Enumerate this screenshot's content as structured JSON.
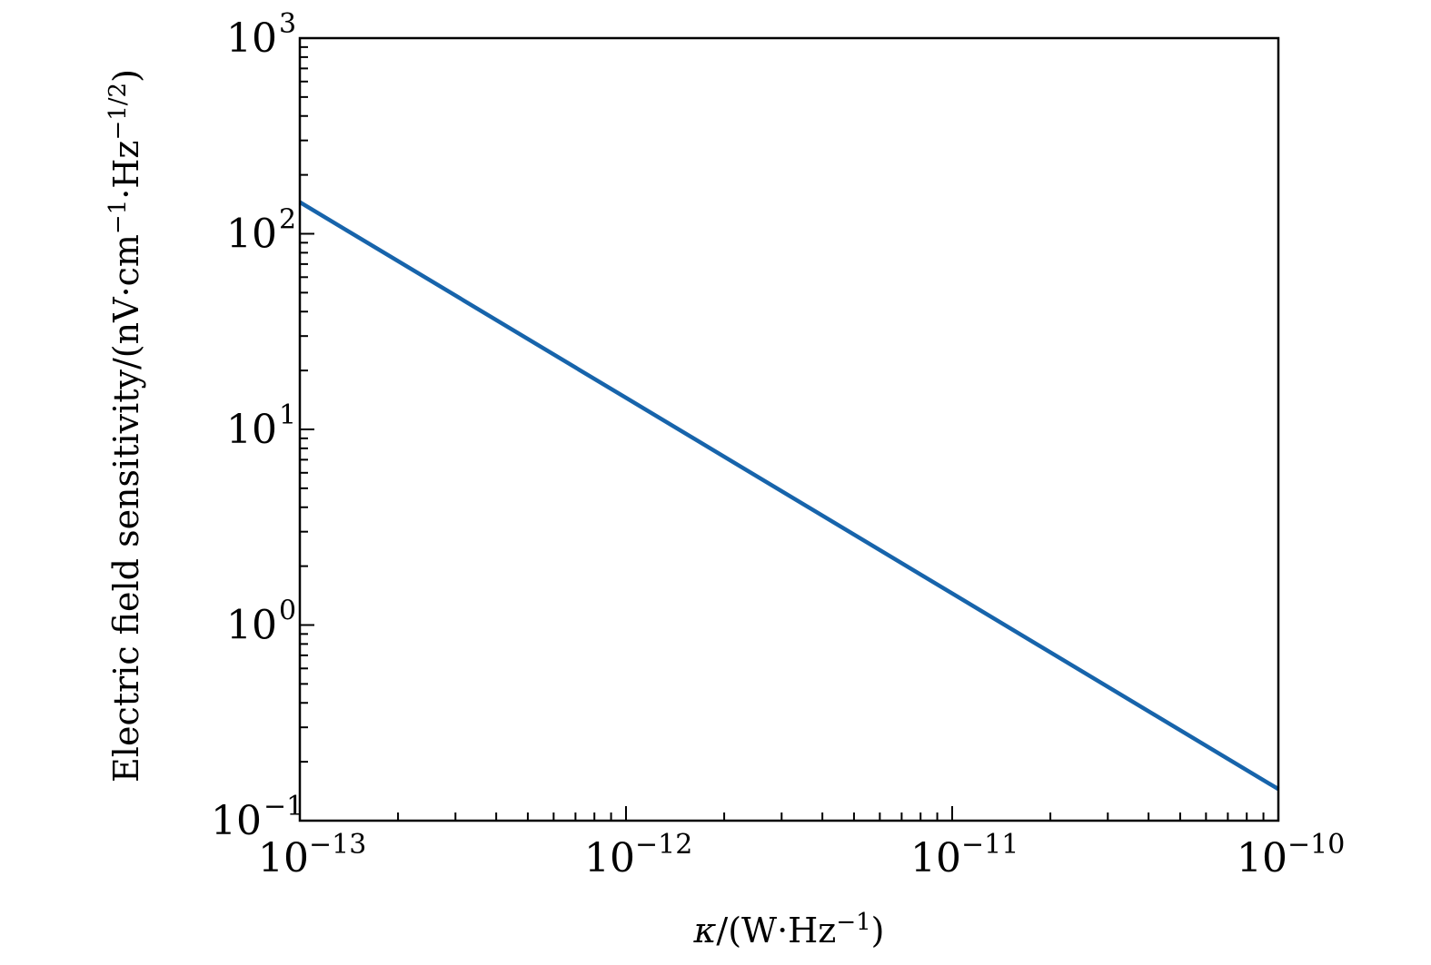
{
  "chart_data": {
    "type": "line",
    "title": "",
    "xlabel": {
      "parts": [
        {
          "text": "κ",
          "italic": true
        },
        {
          "text": "/(W·Hz"
        },
        {
          "text": "−1",
          "sup": true
        },
        {
          "text": ")"
        }
      ]
    },
    "ylabel": {
      "parts": [
        {
          "text": "Electric field sensitivity/(nV·cm"
        },
        {
          "text": "−1",
          "sup": true
        },
        {
          "text": "·Hz"
        },
        {
          "text": "−1/2",
          "sup": true
        },
        {
          "text": ")"
        }
      ]
    },
    "xscale": "log",
    "yscale": "log",
    "xlim": [
      1e-13,
      1e-10
    ],
    "ylim": [
      0.1,
      1000
    ],
    "x_ticks": [
      {
        "value": 1e-13,
        "base": "10",
        "exp": "−13"
      },
      {
        "value": 1e-12,
        "base": "10",
        "exp": "−12"
      },
      {
        "value": 1e-11,
        "base": "10",
        "exp": "−11"
      },
      {
        "value": 1e-10,
        "base": "10",
        "exp": "−10"
      }
    ],
    "y_ticks": [
      {
        "value": 0.1,
        "base": "10",
        "exp": "−1"
      },
      {
        "value": 1,
        "base": "10",
        "exp": "0"
      },
      {
        "value": 10,
        "base": "10",
        "exp": "1"
      },
      {
        "value": 100,
        "base": "10",
        "exp": "2"
      },
      {
        "value": 1000,
        "base": "10",
        "exp": "3"
      }
    ],
    "grid": false,
    "legend": "none",
    "series": [
      {
        "color": "#1764ab",
        "x": [
          1e-13,
          1e-12,
          1e-11,
          1e-10
        ],
        "y": [
          145,
          14.5,
          1.45,
          0.145
        ]
      }
    ]
  }
}
